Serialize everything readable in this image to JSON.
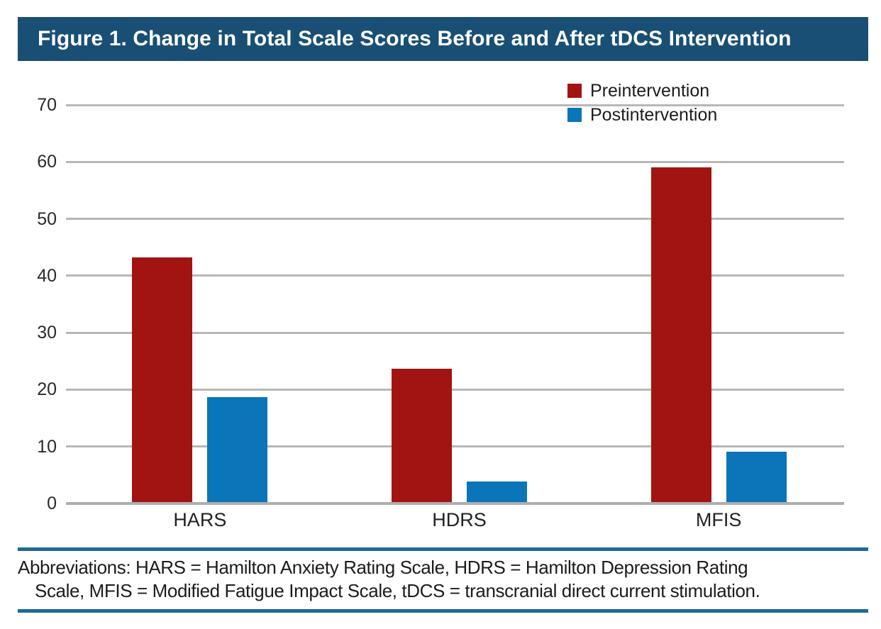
{
  "title": "Figure 1. Change in Total Scale Scores Before and After tDCS Intervention",
  "colors": {
    "header_bg": "#194f74",
    "header_text": "#ffffff",
    "preintervention": "#a21411",
    "postintervention": "#0b75ba",
    "gridline": "#b7b7b7",
    "footnote_rule": "#1e6b95"
  },
  "chart_data": {
    "type": "bar",
    "title": "Change in Total Scale Scores Before and After tDCS Intervention",
    "categories": [
      "HARS",
      "HDRS",
      "MFIS"
    ],
    "series": [
      {
        "name": "Preintervention",
        "color": "#a21411",
        "values": [
          43.2,
          23.7,
          59.0
        ]
      },
      {
        "name": "Postintervention",
        "color": "#0b75ba",
        "values": [
          18.7,
          3.9,
          9.1
        ]
      }
    ],
    "xlabel": "",
    "ylabel": "",
    "ylim": [
      0,
      70
    ],
    "yticks": [
      0,
      10,
      20,
      30,
      40,
      50,
      60,
      70
    ],
    "grid": true,
    "legend_position": "top-right"
  },
  "legend": {
    "items": [
      {
        "label": "Preintervention"
      },
      {
        "label": "Postintervention"
      }
    ]
  },
  "footnote": {
    "lines": [
      "Abbreviations: HARS = Hamilton Anxiety Rating Scale, HDRS = Hamilton Depression Rating",
      "Scale, MFIS = Modified Fatigue Impact Scale, tDCS = transcranial direct current stimulation."
    ]
  }
}
